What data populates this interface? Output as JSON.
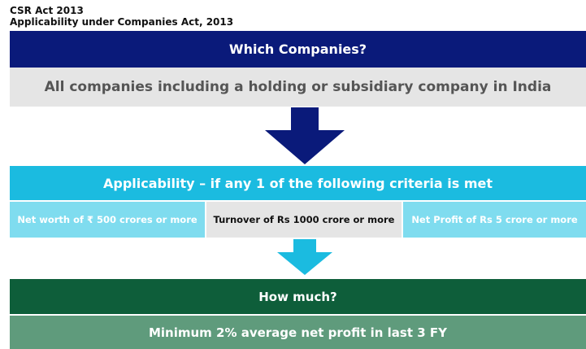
{
  "header": {
    "title": "CSR Act 2013",
    "subtitle": "Applicability under Companies Act, 2013"
  },
  "sections": [
    {
      "heading": "Which Companies?",
      "body": "All companies including a holding or subsidiary company in India"
    },
    {
      "heading": "Applicability – if any 1 of the following criteria is met",
      "criteria": [
        "Net worth of ₹ 500 crores or more",
        "Turnover of Rs 1000 crore or more",
        "Net Profit of Rs 5 crore or more"
      ]
    },
    {
      "heading": "How much?",
      "body": "Minimum 2% average net profit in last 3 FY"
    }
  ]
}
